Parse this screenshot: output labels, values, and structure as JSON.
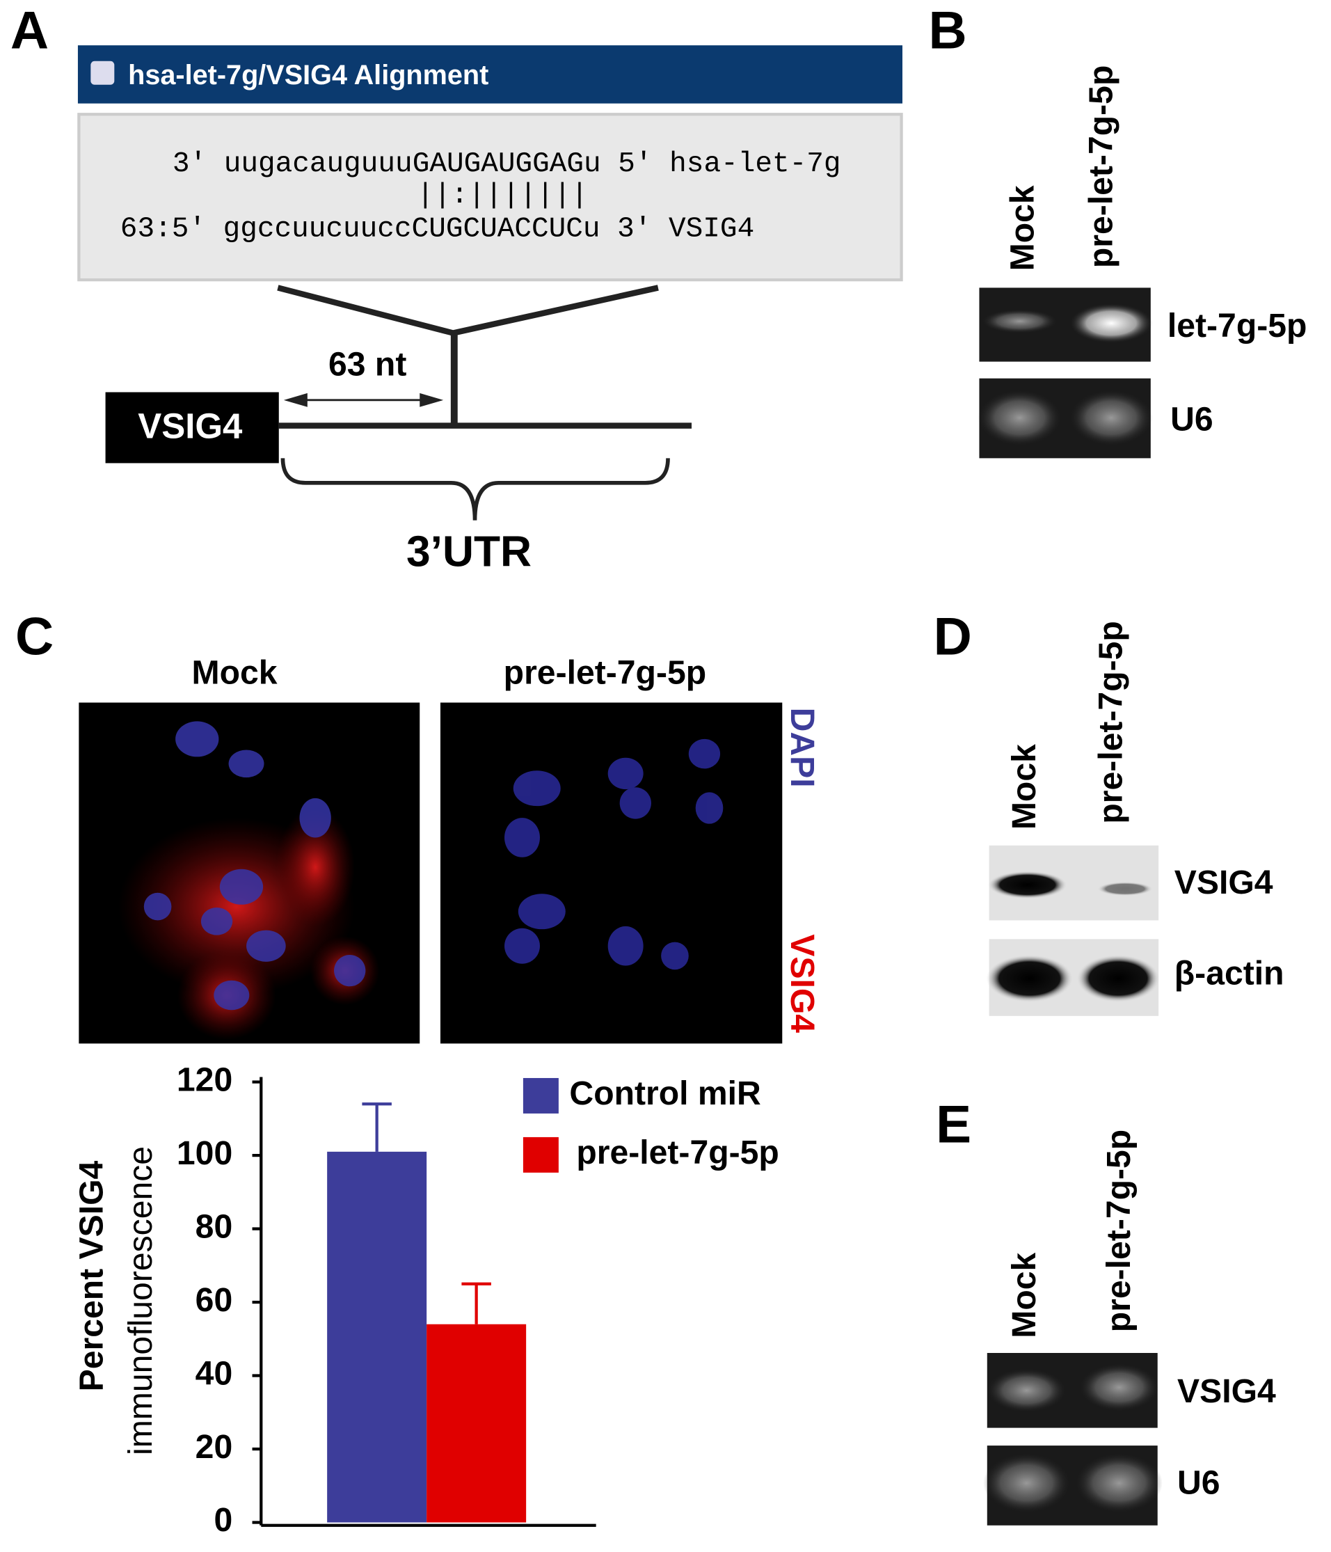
{
  "panels": {
    "a": {
      "label": "A",
      "alignment_title": "hsa-let-7g/VSIG4 Alignment",
      "alignment": [
        "3' uugacauguuuGAUGAUGGAGu 5' hsa-let-7g",
        "||:|||||||",
        "63:5' ggccuucuuccCUGCUACCUCu 3' VSIG4"
      ],
      "gene": "VSIG4",
      "distance": "63 nt",
      "region": "3’UTR"
    },
    "b": {
      "label": "B",
      "lanes": [
        "Mock",
        "pre-let-7g-5p"
      ],
      "bands": [
        "let-7g-5p",
        "U6"
      ]
    },
    "c": {
      "label": "C",
      "images": [
        "Mock",
        "pre-let-7g-5p"
      ],
      "stains": [
        "DAPI",
        "VSIG4"
      ]
    },
    "d": {
      "label": "D",
      "lanes": [
        "Mock",
        "pre-let-7g-5p"
      ],
      "bands": [
        "VSIG4",
        "β-actin"
      ]
    },
    "e": {
      "label": "E",
      "lanes": [
        "Mock",
        "pre-let-7g-5p"
      ],
      "bands": [
        "VSIG4",
        "U6"
      ]
    }
  },
  "chart_data": {
    "type": "bar",
    "ylabel": [
      "Percent VSIG4",
      "immunofluorescence"
    ],
    "categories": [
      null
    ],
    "series": [
      {
        "name": "Control miR",
        "color": "#3d3d9a",
        "values": [
          101
        ],
        "errors": [
          13
        ]
      },
      {
        "name": "pre-let-7g-5p",
        "color": "#e00000",
        "values": [
          54
        ],
        "errors": [
          11
        ]
      }
    ],
    "ylim": [
      0,
      120
    ],
    "yticks": [
      0,
      20,
      40,
      60,
      80,
      100,
      120
    ]
  }
}
